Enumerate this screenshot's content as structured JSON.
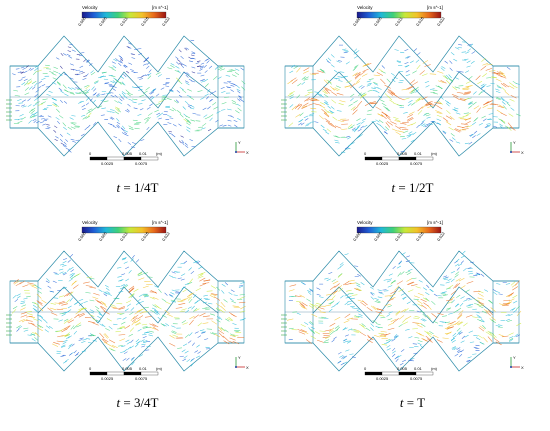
{
  "colorbar": {
    "title": "Velocity",
    "unit": "[m s^-1]",
    "ticks": [
      "0.000",
      "0.005",
      "0.011",
      "0.016",
      "0.022"
    ],
    "colors": [
      "#1a1a8c",
      "#1f5fd6",
      "#20b8d8",
      "#3fd07a",
      "#c8e83a",
      "#f2c22a",
      "#e86a1c",
      "#9a1414"
    ]
  },
  "scalebar": {
    "top_labels": [
      "0",
      "0.005",
      "0.01",
      "(m)"
    ],
    "bottom_labels": [
      "0.0025",
      "0.0075"
    ]
  },
  "axes": {
    "y": "Y",
    "x": "X"
  },
  "panels": [
    {
      "caption_var": "t",
      "caption_eq": " = 1/4T",
      "intensity": 0.45
    },
    {
      "caption_var": "t",
      "caption_eq": " = 1/2T",
      "intensity": 0.9
    },
    {
      "caption_var": "t",
      "caption_eq": " = 3/4T",
      "intensity": 0.85
    },
    {
      "caption_var": "t",
      "caption_eq": " = T",
      "intensity": 0.85
    }
  ]
}
